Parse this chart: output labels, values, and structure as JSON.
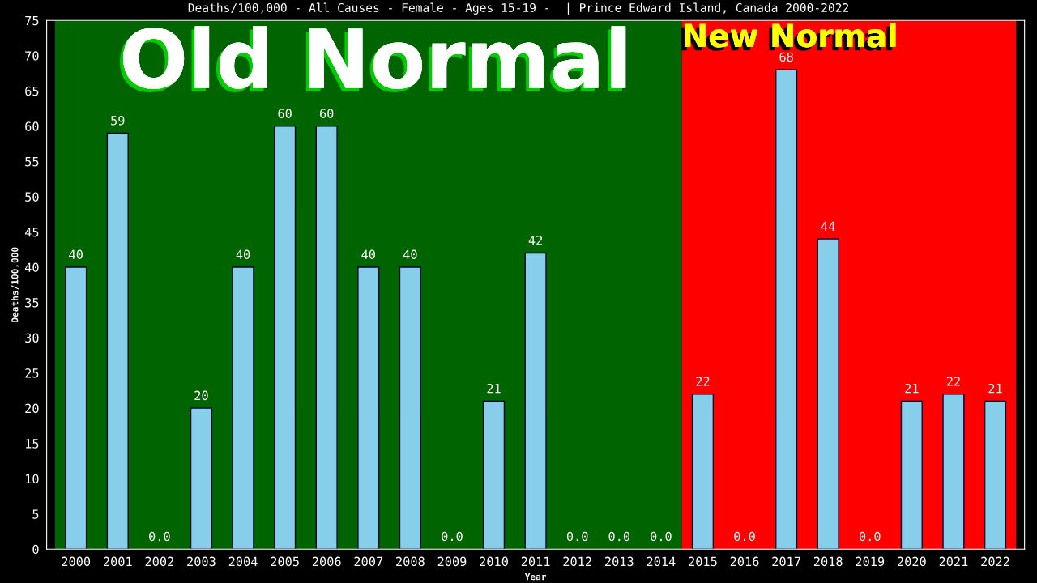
{
  "chart_data": {
    "type": "bar",
    "title": "Deaths/100,000 - All Causes - Female - Ages 15-19 -  | Prince Edward Island, Canada 2000-2022",
    "xlabel": "Year",
    "ylabel": "Deaths/100,000",
    "categories": [
      "2000",
      "2001",
      "2002",
      "2003",
      "2004",
      "2005",
      "2006",
      "2007",
      "2008",
      "2009",
      "2010",
      "2011",
      "2012",
      "2013",
      "2014",
      "2015",
      "2016",
      "2017",
      "2018",
      "2019",
      "2020",
      "2021",
      "2022"
    ],
    "values": [
      40,
      59,
      0,
      20,
      40,
      60,
      60,
      40,
      40,
      0,
      21,
      42,
      0,
      0,
      0,
      22,
      0,
      68,
      44,
      0,
      21,
      22,
      21
    ],
    "value_labels": [
      "40",
      "59",
      "0.0",
      "20",
      "40",
      "60",
      "60",
      "40",
      "40",
      "0.0",
      "21",
      "42",
      "0.0",
      "0.0",
      "0.0",
      "22",
      "0.0",
      "68",
      "44",
      "0.0",
      "21",
      "22",
      "21"
    ],
    "color": "#87ceeb",
    "ylim": [
      0,
      75
    ],
    "yticks": [
      0,
      5,
      10,
      15,
      20,
      25,
      30,
      35,
      40,
      45,
      50,
      55,
      60,
      65,
      70,
      75
    ],
    "grid": false,
    "legend": false,
    "bands": [
      {
        "axis": "x",
        "from": "2000",
        "to": "2014",
        "label": "Old Normal",
        "color": "#006400"
      },
      {
        "axis": "x",
        "from": "2015",
        "to": "2022",
        "label": "New Normal",
        "color": "#ff0000"
      }
    ]
  }
}
